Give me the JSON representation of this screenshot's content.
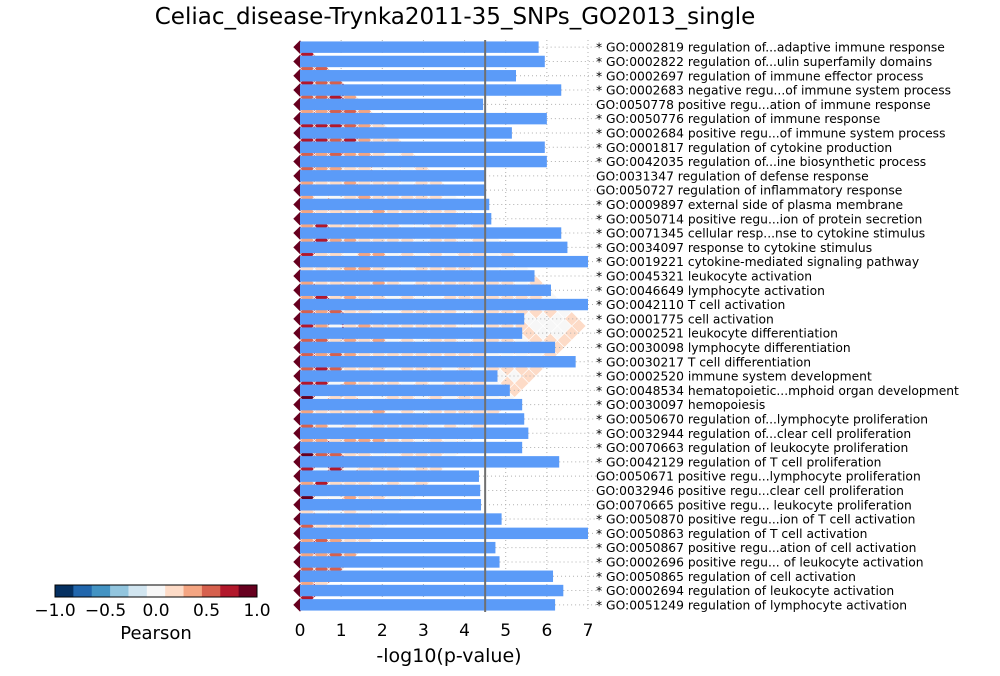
{
  "chart_data": [
    {
      "type": "bar",
      "orientation": "horizontal",
      "title": "Celiac_disease-Trynka2011-35_SNPs_GO2013_single",
      "xlabel": "-log10(p-value)",
      "xlim": [
        0,
        7
      ],
      "xticks": [
        "0",
        "1",
        "2",
        "3",
        "4",
        "5",
        "6",
        "7"
      ],
      "grid": true,
      "threshold_line": 4.5,
      "bar_color": "#5b9bf8",
      "categories": [
        "* GO:0002819 regulation of...adaptive immune response",
        "* GO:0002822 regulation of...ulin superfamily domains",
        "* GO:0002697 regulation of immune effector process",
        "* GO:0002683 negative regu...of immune system process",
        "GO:0050778 positive regu...ation of immune response",
        "* GO:0050776 regulation of immune response",
        "* GO:0002684 positive regu...of immune system process",
        "* GO:0001817 regulation of cytokine production",
        "* GO:0042035 regulation of...ine biosynthetic process",
        "GO:0031347 regulation of defense response",
        "GO:0050727 regulation of inflammatory response",
        "* GO:0009897 external side of plasma membrane",
        "* GO:0050714 positive regu...ion of protein secretion",
        "* GO:0071345 cellular resp...nse to cytokine stimulus",
        "* GO:0034097 response to cytokine stimulus",
        "* GO:0019221 cytokine-mediated signaling pathway",
        "* GO:0045321 leukocyte activation",
        "* GO:0046649 lymphocyte activation",
        "* GO:0042110 T cell activation",
        "* GO:0001775 cell activation",
        "* GO:0002521 leukocyte differentiation",
        "* GO:0030098 lymphocyte differentiation",
        "* GO:0030217 T cell differentiation",
        "* GO:0002520 immune system development",
        "* GO:0048534 hematopoietic...mphoid organ development",
        "* GO:0030097 hemopoiesis",
        "* GO:0050670 regulation of...lymphocyte proliferation",
        "* GO:0032944 regulation of...clear cell proliferation",
        "* GO:0070663 regulation of leukocyte proliferation",
        "* GO:0042129 regulation of T cell proliferation",
        "GO:0050671 positive regu...lymphocyte proliferation",
        "GO:0032946 positive regu...clear cell proliferation",
        "GO:0070665 positive regu... leukocyte proliferation",
        "* GO:0050870 positive regu...ion of T cell activation",
        "* GO:0050863 regulation of T cell activation",
        "* GO:0050867 positive regu...ation of cell activation",
        "* GO:0002696 positive regu... of leukocyte activation",
        "* GO:0050865 regulation of cell activation",
        "* GO:0002694 regulation of leukocyte activation",
        "* GO:0051249 regulation of lymphocyte activation"
      ],
      "values": [
        5.8,
        5.95,
        5.25,
        6.35,
        4.45,
        6.0,
        5.15,
        5.95,
        6.0,
        4.5,
        4.52,
        4.6,
        4.65,
        6.35,
        6.5,
        7.0,
        5.7,
        6.1,
        7.0,
        5.45,
        5.4,
        6.2,
        6.7,
        4.8,
        5.1,
        5.4,
        5.45,
        5.55,
        5.4,
        6.3,
        4.35,
        4.38,
        4.4,
        4.9,
        7.0,
        4.75,
        4.85,
        6.15,
        6.4,
        6.2
      ]
    },
    {
      "type": "heatmap",
      "shape": "triangular correlation matrix rotated 45 degrees",
      "colorbar": {
        "label": "Pearson",
        "range": [
          -1.0,
          1.0
        ],
        "ticks": [
          "−1.0",
          "−0.5",
          "0.0",
          "0.5",
          "1.0"
        ],
        "colors": [
          "#053061",
          "#2166ac",
          "#4393c3",
          "#92c5de",
          "#d1e5f0",
          "#f7f7f7",
          "#fddbc7",
          "#f4a582",
          "#d6604d",
          "#b2182b",
          "#67001f"
        ]
      }
    }
  ]
}
